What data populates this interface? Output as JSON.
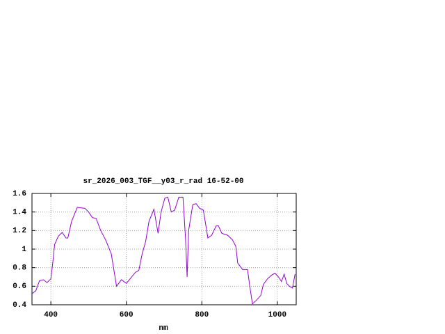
{
  "chart_data": {
    "type": "line",
    "title": "sr_2026_003_TGF__y03_r_rad 16-52-00",
    "x_label": "nm",
    "color": "#9400d3",
    "x": [
      350,
      360,
      370,
      380,
      390,
      400,
      405,
      410,
      420,
      430,
      440,
      445,
      455,
      470,
      490,
      500,
      510,
      520,
      532,
      545,
      560,
      574,
      587,
      600,
      624,
      633,
      642,
      651,
      660,
      673,
      684,
      692,
      702,
      710,
      719,
      728,
      739,
      750,
      757,
      761,
      765,
      776,
      785,
      794,
      804,
      816,
      826,
      838,
      844,
      853,
      868,
      881,
      890,
      895,
      908,
      921,
      927,
      934,
      945,
      956,
      963,
      974,
      985,
      994,
      1003,
      1011,
      1018,
      1025,
      1032,
      1040,
      1047
    ],
    "values": [
      0.52,
      0.55,
      0.66,
      0.67,
      0.64,
      0.68,
      0.85,
      1.05,
      1.14,
      1.18,
      1.12,
      1.12,
      1.3,
      1.45,
      1.44,
      1.4,
      1.34,
      1.33,
      1.2,
      1.1,
      0.95,
      0.6,
      0.67,
      0.63,
      0.75,
      0.77,
      0.95,
      1.08,
      1.3,
      1.43,
      1.17,
      1.4,
      1.55,
      1.56,
      1.4,
      1.42,
      1.56,
      1.56,
      1.1,
      0.7,
      1.2,
      1.48,
      1.49,
      1.44,
      1.42,
      1.12,
      1.15,
      1.25,
      1.25,
      1.17,
      1.15,
      1.1,
      1.03,
      0.85,
      0.78,
      0.78,
      0.6,
      0.41,
      0.45,
      0.5,
      0.62,
      0.68,
      0.72,
      0.74,
      0.7,
      0.65,
      0.73,
      0.63,
      0.6,
      0.58,
      0.73
    ],
    "xlim": [
      350,
      1050
    ],
    "ylim": [
      0.4,
      1.6
    ],
    "xticks": [
      400,
      600,
      800,
      1000
    ],
    "yticks": [
      0.4,
      0.6,
      0.8,
      1,
      1.2,
      1.4,
      1.6
    ],
    "grid": true
  }
}
